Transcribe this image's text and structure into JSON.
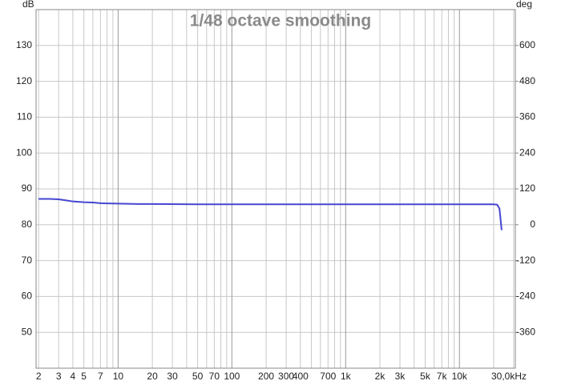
{
  "chart_data": {
    "type": "line",
    "title": "1/48 octave smoothing",
    "y_label": "dB",
    "y2_label": "deg",
    "x_scale": "log",
    "grid": true,
    "color": "#4646d2",
    "x": [
      2,
      2.5,
      3,
      3.5,
      4,
      5,
      6,
      7,
      10,
      15,
      20,
      50,
      100,
      1000,
      10000,
      20000,
      21500,
      22500,
      23500
    ],
    "values": [
      87.2,
      87.2,
      87.1,
      86.8,
      86.5,
      86.3,
      86.2,
      86.0,
      85.9,
      85.8,
      85.8,
      85.7,
      85.7,
      85.7,
      85.7,
      85.7,
      85.6,
      84.5,
      78.5
    ],
    "xlim": [
      1.9,
      31000
    ],
    "xticks": [
      2,
      3,
      4,
      5,
      7,
      10,
      20,
      30,
      50,
      70,
      100,
      200,
      300,
      400,
      700,
      {
        "value": 1000,
        "label": "1k"
      },
      {
        "value": 2000,
        "label": "2k"
      },
      {
        "value": 3000,
        "label": "3k"
      },
      {
        "value": 5000,
        "label": "5k"
      },
      {
        "value": 7000,
        "label": "7k"
      },
      {
        "value": 10000,
        "label": "10k"
      },
      {
        "value": 30000,
        "label": "30,0kHz"
      }
    ],
    "x_minor_ticks": [
      6,
      8,
      9,
      40,
      60,
      80,
      90,
      500,
      600,
      800,
      900,
      4000,
      6000,
      8000,
      9000,
      20000
    ],
    "ylim": [
      40,
      140
    ],
    "yticks": [
      50,
      60,
      70,
      80,
      90,
      100,
      110,
      120,
      130
    ],
    "y2lim": [
      -480,
      720
    ],
    "y2ticks": [
      -360,
      -240,
      -120,
      0,
      120,
      240,
      360,
      480,
      600
    ]
  }
}
